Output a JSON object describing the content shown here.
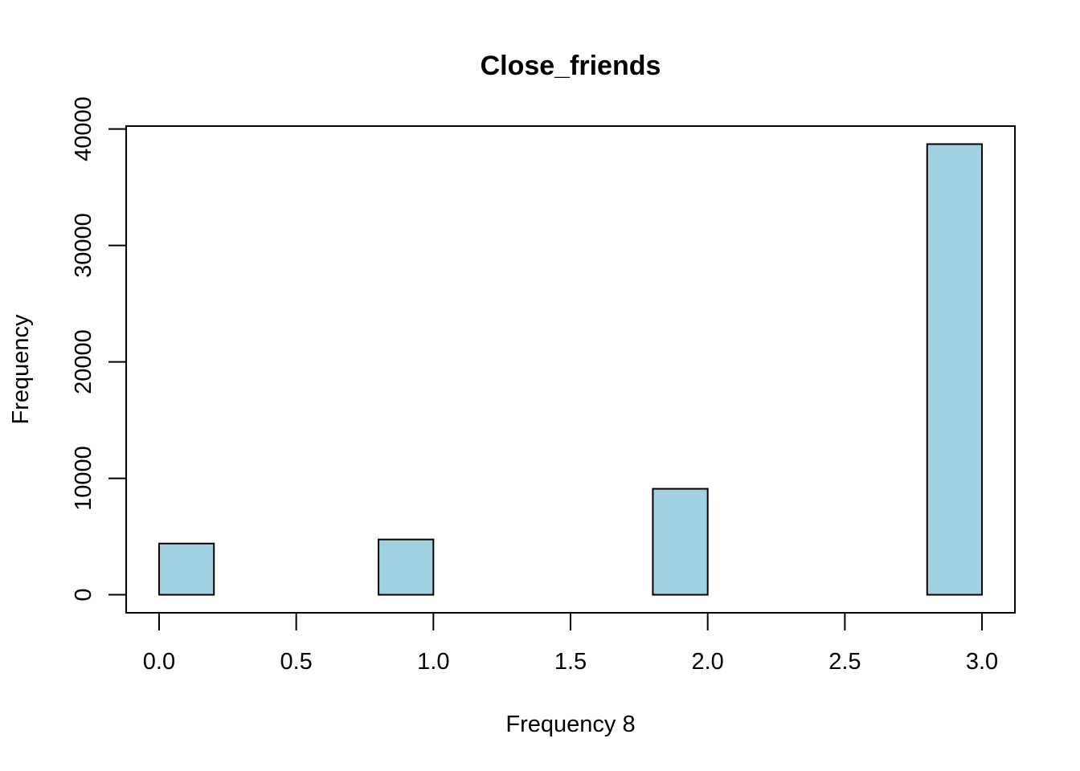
{
  "chart_data": {
    "type": "bar",
    "title": "Close_friends",
    "xlabel": "Frequency 8",
    "ylabel": "Frequency",
    "bin_edges": [
      0.0,
      0.2,
      0.4,
      0.6,
      0.8,
      1.0,
      1.2,
      1.4,
      1.6,
      1.8,
      2.0,
      2.2,
      2.4,
      2.6,
      2.8,
      3.0
    ],
    "values": [
      4400,
      0,
      0,
      0,
      4750,
      0,
      0,
      0,
      0,
      9100,
      0,
      0,
      0,
      0,
      38700
    ],
    "x_ticks": [
      "0.0",
      "0.5",
      "1.0",
      "1.5",
      "2.0",
      "2.5",
      "3.0"
    ],
    "y_ticks": [
      "0",
      "10000",
      "20000",
      "30000",
      "40000"
    ],
    "xlim": [
      -0.12,
      3.12
    ],
    "ylim": [
      -1548,
      40248
    ],
    "bar_color": "#a1d0e1",
    "grid": false
  }
}
